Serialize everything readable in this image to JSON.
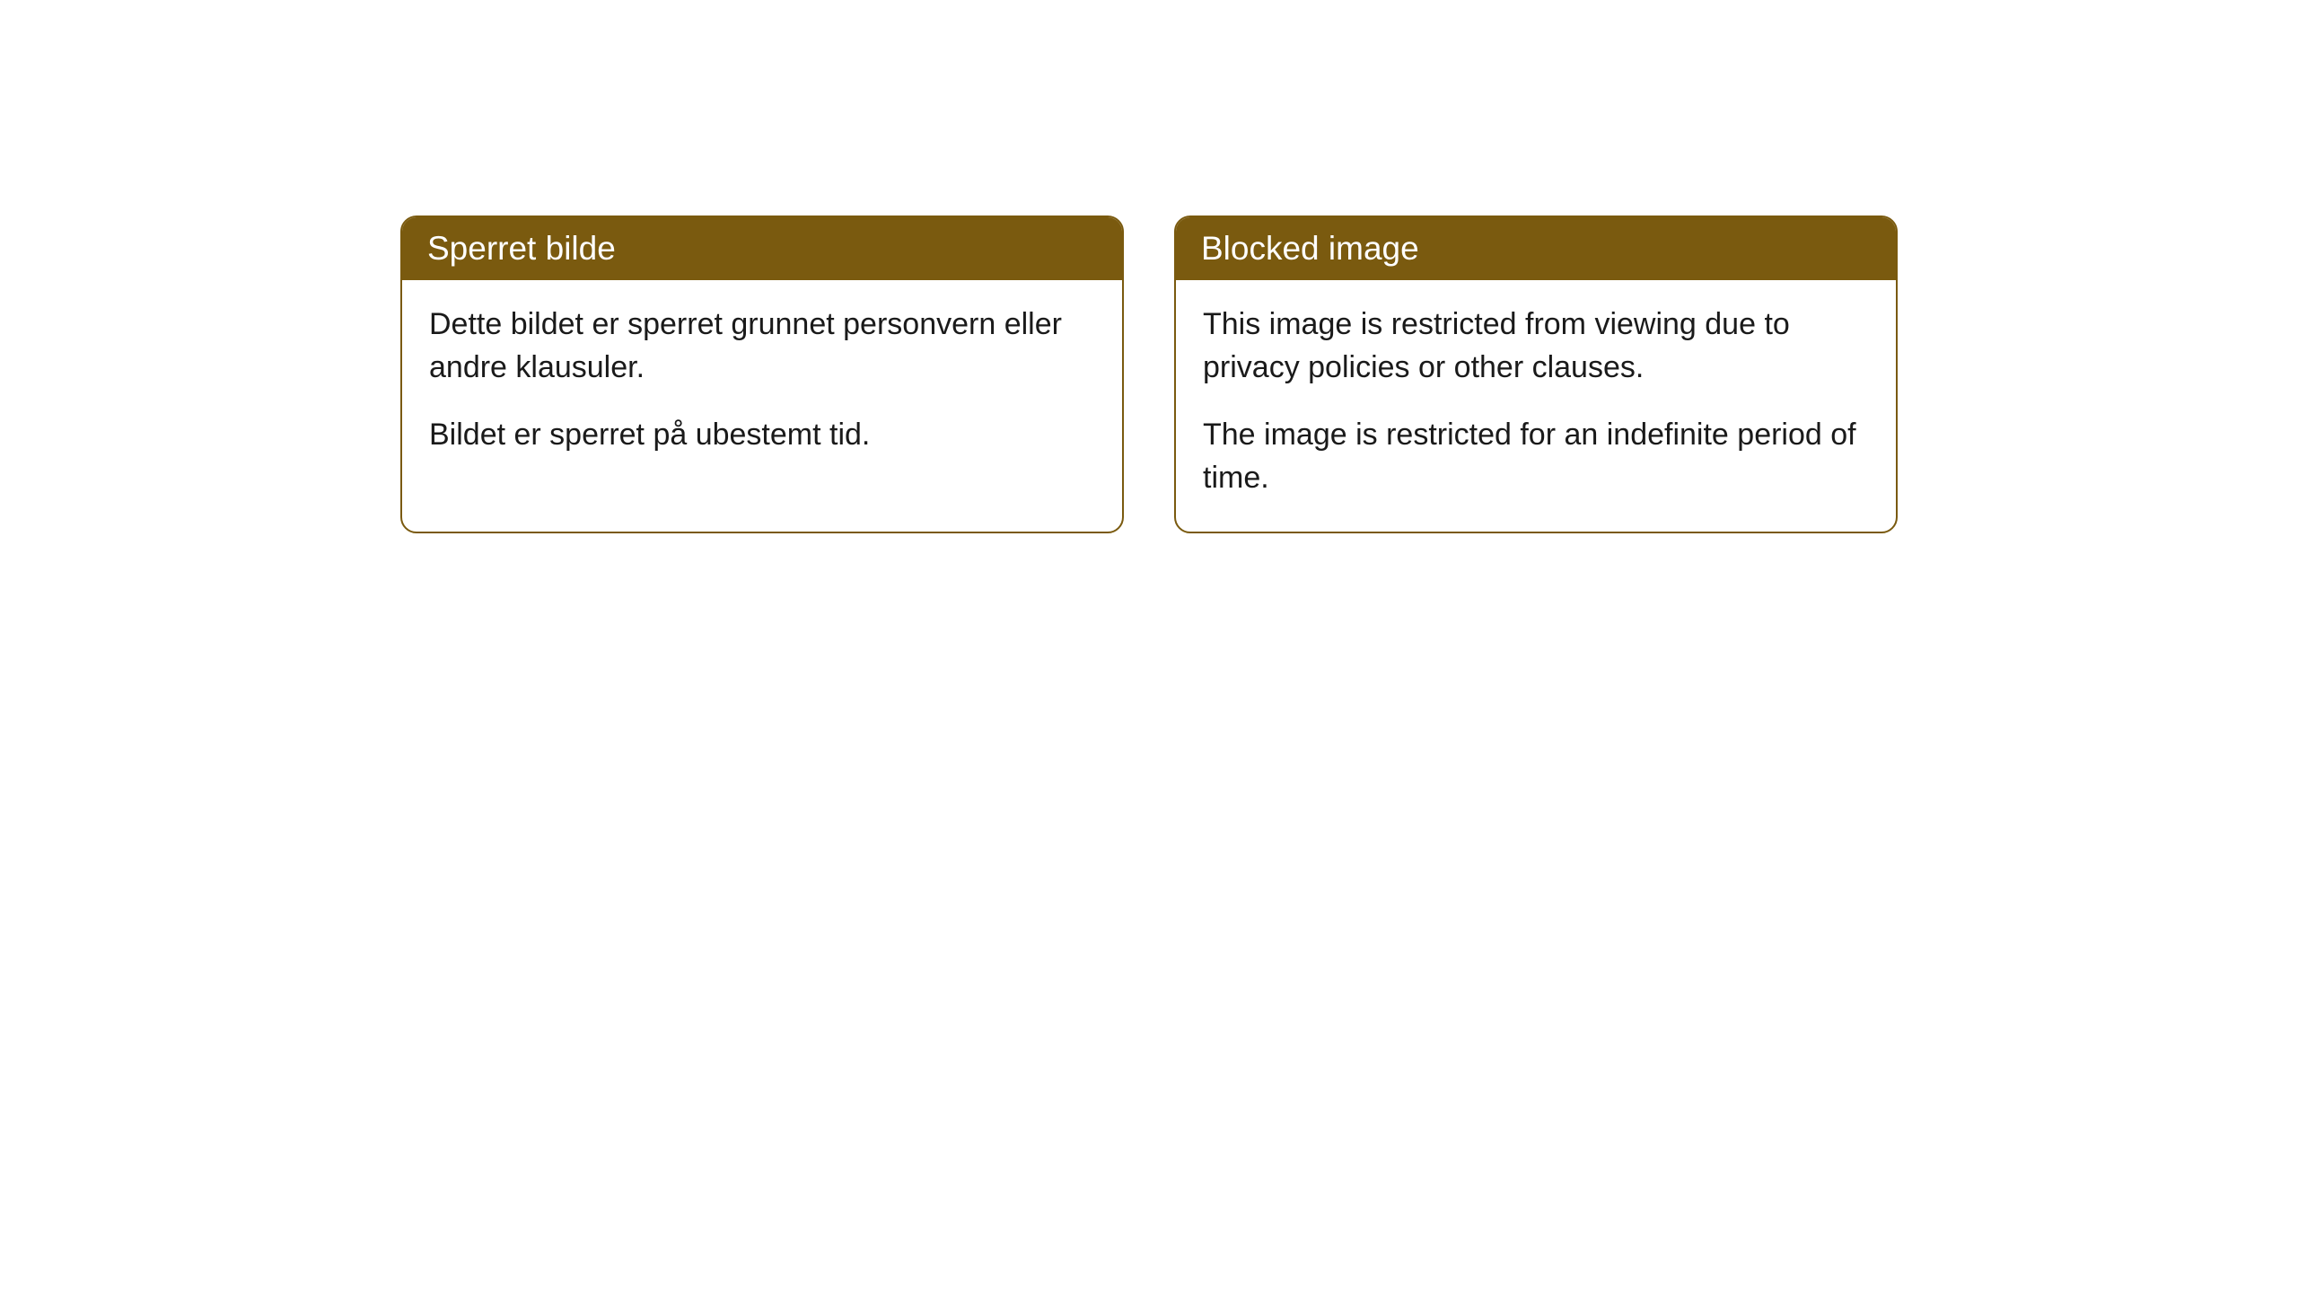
{
  "cards": [
    {
      "title": "Sperret bilde",
      "paragraph1": "Dette bildet er sperret grunnet personvern eller andre klausuler.",
      "paragraph2": "Bildet er sperret på ubestemt tid."
    },
    {
      "title": "Blocked image",
      "paragraph1": "This image is restricted from viewing due to privacy policies or other clauses.",
      "paragraph2": "The image is restricted for an indefinite period of time."
    }
  ],
  "style": {
    "header_bg_color": "#7a5a0f",
    "header_text_color": "#ffffff",
    "card_border_color": "#7a5a0f",
    "card_bg_color": "#ffffff",
    "body_text_color": "#1a1a1a",
    "page_bg_color": "#ffffff",
    "border_radius": 18,
    "title_fontsize": 37,
    "body_fontsize": 34
  }
}
